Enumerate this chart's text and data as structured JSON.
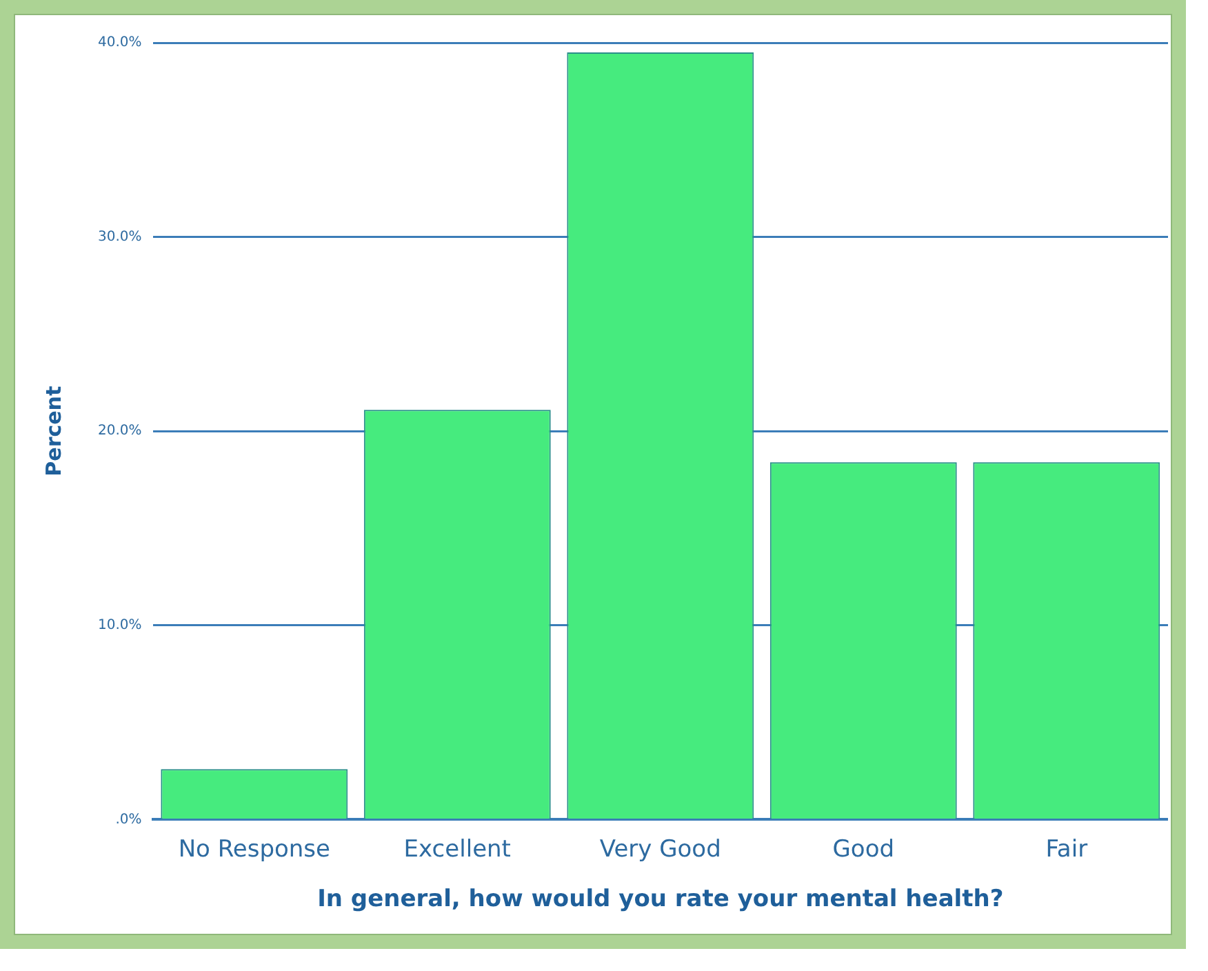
{
  "chart_data": {
    "type": "bar",
    "xlabel": "In general, how would you rate your mental health?",
    "ylabel": "Percent",
    "categories": [
      "No Response",
      "Excellent",
      "Very Good",
      "Good",
      "Fair"
    ],
    "values": [
      2.6,
      21.1,
      39.5,
      18.4,
      18.4
    ],
    "color": "#46eb7e",
    "ylim": [
      0,
      40
    ],
    "yticks": [
      {
        "value": 0,
        "label": ".0%"
      },
      {
        "value": 10,
        "label": "10.0%"
      },
      {
        "value": 20,
        "label": "20.0%"
      },
      {
        "value": 30,
        "label": "30.0%"
      },
      {
        "value": 40,
        "label": "40.0%"
      }
    ],
    "grid": "y",
    "legend": false
  }
}
